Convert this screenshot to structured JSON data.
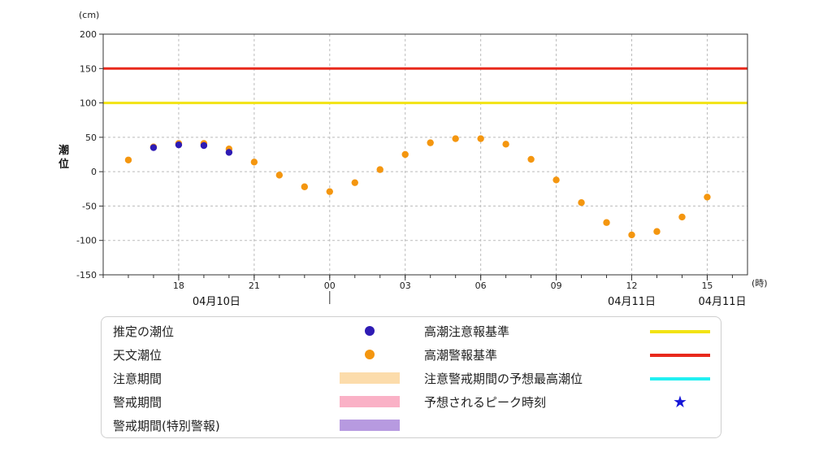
{
  "chart_data": {
    "type": "scatter",
    "y_unit": "(cm)",
    "x_unit": "(時)",
    "ylabel": "潮位",
    "ylim": [
      -150,
      200
    ],
    "yticks": [
      200,
      150,
      100,
      50,
      0,
      -50,
      -100,
      -150
    ],
    "ytick_labels": [
      "200",
      "150",
      "100",
      "50",
      "0",
      "-50",
      "-100",
      "-150"
    ],
    "xlim": [
      15,
      40.6
    ],
    "x_ticks": [
      {
        "hour": 18,
        "label": "18"
      },
      {
        "hour": 21,
        "label": "21"
      },
      {
        "hour": 24,
        "label": "00"
      },
      {
        "hour": 27,
        "label": "03"
      },
      {
        "hour": 30,
        "label": "06"
      },
      {
        "hour": 33,
        "label": "09"
      },
      {
        "hour": 36,
        "label": "12"
      },
      {
        "hour": 39,
        "label": "15"
      }
    ],
    "date_labels": [
      {
        "hour": 19.5,
        "label": "04月10日"
      },
      {
        "hour": 36,
        "label": "04月11日"
      },
      {
        "hour": 39.6,
        "label": "04月11日"
      }
    ],
    "date_separator_hour": 24,
    "grid": true,
    "thresholds": [
      {
        "name": "高潮警報基準",
        "value": 150,
        "color": "#e8291c"
      },
      {
        "name": "高潮注意報基準",
        "value": 100,
        "color": "#f2e313"
      }
    ],
    "series": [
      {
        "name": "天文潮位",
        "color": "#f4960f",
        "x": [
          16,
          17,
          18,
          19,
          20,
          21,
          22,
          23,
          24,
          25,
          26,
          27,
          28,
          29,
          30,
          31,
          32,
          33,
          34,
          35,
          36,
          37,
          38,
          39
        ],
        "y": [
          17,
          36,
          41,
          41,
          33,
          14,
          -5,
          -22,
          -29,
          -16,
          3,
          25,
          42,
          48,
          48,
          40,
          18,
          -12,
          -45,
          -74,
          -92,
          -87,
          -66,
          -37
        ]
      },
      {
        "name": "推定の潮位",
        "color": "#2e1bb4",
        "x": [
          17,
          18,
          19,
          20
        ],
        "y": [
          35,
          39,
          38,
          28
        ]
      }
    ]
  },
  "legend": {
    "items": [
      {
        "label": "推定の潮位",
        "kind": "dot",
        "color": "#2e1bb4"
      },
      {
        "label": "天文潮位",
        "kind": "dot",
        "color": "#f4960f"
      },
      {
        "label": "注意期間",
        "kind": "rect",
        "color": "#fcdcab"
      },
      {
        "label": "警戒期間",
        "kind": "rect",
        "color": "#fab1c6"
      },
      {
        "label": "警戒期間(特別警報)",
        "kind": "rect",
        "color": "#b79ae0"
      },
      {
        "label": "高潮注意報基準",
        "kind": "line",
        "color": "#f2e313"
      },
      {
        "label": "高潮警報基準",
        "kind": "line",
        "color": "#e8291c"
      },
      {
        "label": "注意警戒期間の予想最高潮位",
        "kind": "line",
        "color": "#22f0f2"
      },
      {
        "label": "予想されるピーク時刻",
        "kind": "star",
        "color": "#1616d8",
        "symbol": "★"
      }
    ]
  }
}
